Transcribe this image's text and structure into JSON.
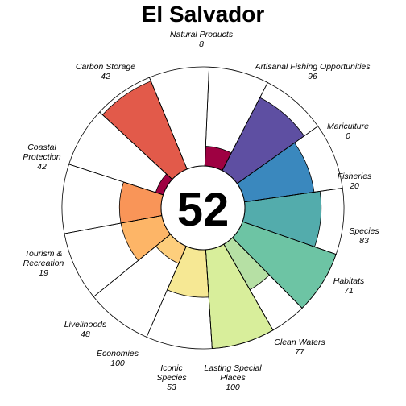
{
  "chart_data": {
    "type": "flower",
    "title": "El Salvador",
    "overall_score": 52,
    "ylim": [
      0,
      100
    ],
    "petals": [
      {
        "label": "Natural Products",
        "value": 8,
        "color": "#9E0142"
      },
      {
        "label": "Artisanal Fishing Opportunities",
        "value": 96,
        "color": "#E25A4A"
      },
      {
        "label": "Mariculture",
        "value": 0,
        "color": "#FFFFFF"
      },
      {
        "label": "Fisheries",
        "value": 20,
        "color": "#9E0142"
      },
      {
        "label": "Species",
        "value": 83,
        "color": "#5E4FA2"
      },
      {
        "label": "Habitats",
        "value": 71,
        "color": "#3A88BE"
      },
      {
        "label": "Clean Waters",
        "value": 77,
        "color": "#53ACAC"
      },
      {
        "label": "Lasting Special Places",
        "value": 100,
        "color": "#6DC4A4"
      },
      {
        "label": "Iconic Species",
        "value": 53,
        "color": "#B6E0A4"
      },
      {
        "label": "Economies",
        "value": 100,
        "color": "#D8EE9B"
      },
      {
        "label": "Livelihoods",
        "value": 48,
        "color": "#F6E894"
      },
      {
        "label": "Tourism & Recreation",
        "value": 19,
        "color": "#FDCE7C"
      },
      {
        "label": "Coastal Protection",
        "value": 42,
        "color": "#FDB567"
      },
      {
        "label": "Carbon Storage",
        "value": 42,
        "color": "#F99558"
      }
    ]
  }
}
